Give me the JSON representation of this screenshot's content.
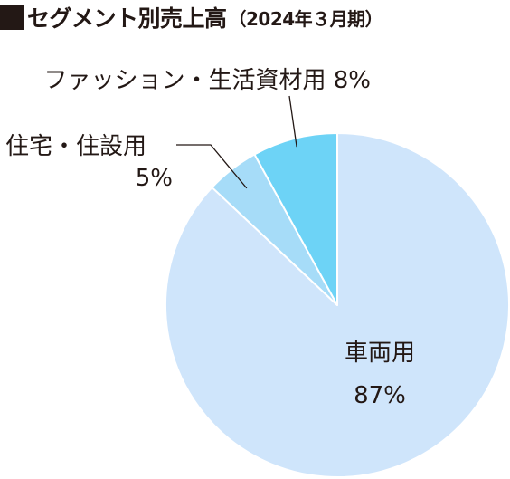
{
  "header": {
    "title": "セグメント別売上高",
    "subtitle": "（2024年３月期）"
  },
  "chart_data": {
    "type": "pie",
    "title": "セグメント別売上高",
    "subtitle": "（2024年３月期）",
    "slices": [
      {
        "name": "車両用",
        "value": 87,
        "value_label": "87%",
        "color": "#cfe5fb"
      },
      {
        "name": "住宅・住設用",
        "value": 5,
        "value_label": "5%",
        "color": "#a6dcf8"
      },
      {
        "name": "ファッション・生活資材用",
        "value": 8,
        "value_label": "8%",
        "color": "#6dd3f6"
      }
    ]
  }
}
